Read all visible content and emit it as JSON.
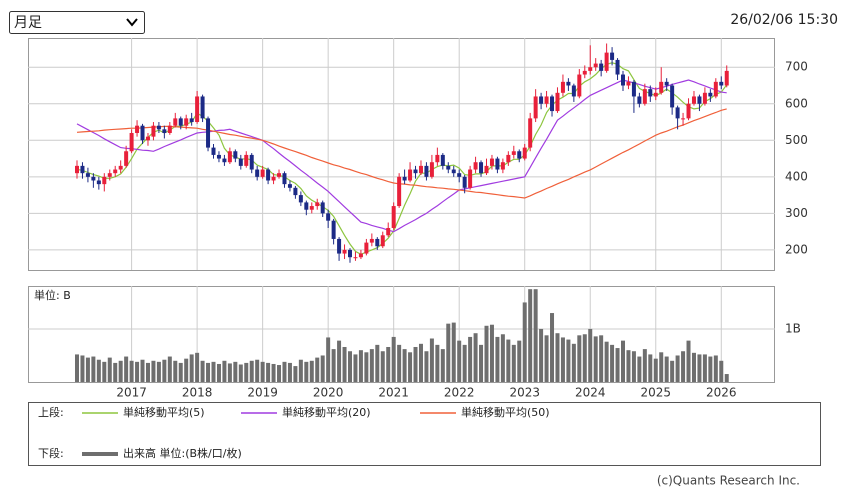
{
  "header": {
    "period_select": "月足",
    "timestamp": "26/02/06 15:30"
  },
  "chart_data": {
    "type": "candlestick",
    "categories": [
      null,
      null,
      null,
      null,
      null,
      null,
      null,
      null,
      null,
      null,
      "2017",
      null,
      null,
      null,
      null,
      null,
      null,
      null,
      null,
      null,
      null,
      null,
      "2018",
      null,
      null,
      null,
      null,
      null,
      null,
      null,
      null,
      null,
      null,
      null,
      "2019",
      null,
      null,
      null,
      null,
      null,
      null,
      null,
      null,
      null,
      null,
      null,
      "2020",
      null,
      null,
      null,
      null,
      null,
      null,
      null,
      null,
      null,
      null,
      null,
      "2021",
      null,
      null,
      null,
      null,
      null,
      null,
      null,
      null,
      null,
      null,
      null,
      "2022",
      null,
      null,
      null,
      null,
      null,
      null,
      null,
      null,
      null,
      null,
      null,
      "2023",
      null,
      null,
      null,
      null,
      null,
      null,
      null,
      null,
      null,
      null,
      null,
      "2024",
      null,
      null,
      null,
      null,
      null,
      null,
      null,
      null,
      null,
      null,
      null,
      "2025",
      null,
      null,
      null,
      null,
      null,
      null,
      null,
      null,
      null,
      null,
      null,
      "2026",
      null
    ],
    "ohlc": [
      [
        410,
        445,
        395,
        430
      ],
      [
        430,
        440,
        395,
        410
      ],
      [
        410,
        425,
        385,
        400
      ],
      [
        400,
        410,
        370,
        390
      ],
      [
        390,
        400,
        365,
        380
      ],
      [
        380,
        410,
        360,
        400
      ],
      [
        400,
        420,
        390,
        410
      ],
      [
        410,
        430,
        400,
        420
      ],
      [
        420,
        445,
        410,
        430
      ],
      [
        430,
        485,
        425,
        470
      ],
      [
        470,
        530,
        465,
        520
      ],
      [
        520,
        555,
        510,
        540
      ],
      [
        540,
        545,
        490,
        500
      ],
      [
        500,
        520,
        485,
        510
      ],
      [
        510,
        550,
        500,
        540
      ],
      [
        540,
        550,
        520,
        530
      ],
      [
        530,
        540,
        505,
        520
      ],
      [
        520,
        550,
        515,
        540
      ],
      [
        540,
        575,
        535,
        560
      ],
      [
        560,
        565,
        530,
        540
      ],
      [
        540,
        570,
        530,
        560
      ],
      [
        560,
        575,
        540,
        550
      ],
      [
        550,
        635,
        545,
        620
      ],
      [
        620,
        625,
        550,
        560
      ],
      [
        560,
        565,
        470,
        480
      ],
      [
        480,
        490,
        450,
        460
      ],
      [
        460,
        470,
        440,
        450
      ],
      [
        450,
        460,
        430,
        440
      ],
      [
        440,
        480,
        435,
        470
      ],
      [
        470,
        475,
        440,
        450
      ],
      [
        450,
        460,
        420,
        430
      ],
      [
        430,
        470,
        425,
        460
      ],
      [
        460,
        465,
        410,
        420
      ],
      [
        420,
        430,
        390,
        400
      ],
      [
        400,
        430,
        395,
        420
      ],
      [
        420,
        425,
        380,
        390
      ],
      [
        390,
        410,
        380,
        400
      ],
      [
        400,
        420,
        395,
        410
      ],
      [
        410,
        415,
        370,
        380
      ],
      [
        380,
        390,
        360,
        370
      ],
      [
        370,
        375,
        340,
        350
      ],
      [
        350,
        360,
        320,
        330
      ],
      [
        330,
        335,
        295,
        310
      ],
      [
        310,
        330,
        300,
        320
      ],
      [
        320,
        340,
        310,
        330
      ],
      [
        330,
        335,
        290,
        300
      ],
      [
        300,
        310,
        260,
        280
      ],
      [
        280,
        285,
        215,
        230
      ],
      [
        230,
        235,
        170,
        190
      ],
      [
        190,
        215,
        175,
        200
      ],
      [
        200,
        205,
        165,
        180
      ],
      [
        180,
        195,
        170,
        180
      ],
      [
        180,
        200,
        175,
        190
      ],
      [
        190,
        230,
        185,
        220
      ],
      [
        220,
        245,
        210,
        230
      ],
      [
        230,
        235,
        200,
        210
      ],
      [
        210,
        250,
        205,
        240
      ],
      [
        240,
        275,
        235,
        260
      ],
      [
        260,
        330,
        255,
        320
      ],
      [
        320,
        410,
        315,
        400
      ],
      [
        400,
        420,
        380,
        390
      ],
      [
        390,
        440,
        385,
        420
      ],
      [
        420,
        430,
        395,
        410
      ],
      [
        410,
        445,
        405,
        430
      ],
      [
        430,
        440,
        390,
        400
      ],
      [
        400,
        460,
        395,
        440
      ],
      [
        440,
        480,
        430,
        460
      ],
      [
        460,
        465,
        420,
        430
      ],
      [
        430,
        440,
        410,
        420
      ],
      [
        420,
        430,
        400,
        410
      ],
      [
        410,
        420,
        385,
        400
      ],
      [
        400,
        405,
        355,
        370
      ],
      [
        370,
        430,
        365,
        420
      ],
      [
        420,
        455,
        410,
        440
      ],
      [
        440,
        445,
        400,
        410
      ],
      [
        410,
        450,
        405,
        430
      ],
      [
        430,
        460,
        420,
        450
      ],
      [
        450,
        455,
        410,
        420
      ],
      [
        420,
        450,
        410,
        440
      ],
      [
        440,
        470,
        430,
        460
      ],
      [
        460,
        485,
        450,
        470
      ],
      [
        470,
        475,
        440,
        450
      ],
      [
        450,
        490,
        445,
        480
      ],
      [
        480,
        575,
        470,
        560
      ],
      [
        560,
        640,
        550,
        620
      ],
      [
        620,
        630,
        585,
        600
      ],
      [
        600,
        635,
        590,
        620
      ],
      [
        620,
        625,
        565,
        580
      ],
      [
        580,
        645,
        575,
        630
      ],
      [
        630,
        680,
        620,
        660
      ],
      [
        660,
        670,
        635,
        650
      ],
      [
        650,
        655,
        605,
        620
      ],
      [
        620,
        695,
        615,
        680
      ],
      [
        680,
        705,
        670,
        690
      ],
      [
        690,
        760,
        680,
        700
      ],
      [
        700,
        725,
        690,
        710
      ],
      [
        710,
        720,
        675,
        690
      ],
      [
        690,
        765,
        685,
        740
      ],
      [
        740,
        755,
        705,
        720
      ],
      [
        720,
        725,
        665,
        680
      ],
      [
        680,
        690,
        635,
        650
      ],
      [
        650,
        675,
        640,
        660
      ],
      [
        660,
        665,
        575,
        620
      ],
      [
        620,
        630,
        590,
        600
      ],
      [
        600,
        655,
        595,
        640
      ],
      [
        640,
        650,
        605,
        620
      ],
      [
        620,
        645,
        610,
        630
      ],
      [
        630,
        700,
        625,
        660
      ],
      [
        660,
        670,
        635,
        650
      ],
      [
        650,
        655,
        570,
        590
      ],
      [
        590,
        595,
        530,
        560
      ],
      [
        560,
        575,
        540,
        560
      ],
      [
        560,
        615,
        555,
        600
      ],
      [
        600,
        635,
        595,
        620
      ],
      [
        620,
        625,
        580,
        600
      ],
      [
        600,
        645,
        595,
        630
      ],
      [
        630,
        640,
        605,
        620
      ],
      [
        620,
        670,
        615,
        660
      ],
      [
        660,
        675,
        640,
        650
      ],
      [
        650,
        705,
        645,
        690
      ]
    ],
    "up_color": "#e8203a",
    "down_color": "#1c2a86",
    "ylim": [
      145,
      780
    ],
    "yticks": [
      200,
      300,
      400,
      500,
      600,
      700
    ],
    "grid": true,
    "upper_label": "上段:",
    "series": [
      {
        "name": "単純移動平均(5)",
        "color": "#8dc63f",
        "values": [
          420,
          418,
          412,
          406,
          402,
          396,
          396,
          400,
          408,
          426,
          450,
          476,
          492,
          508,
          522,
          528,
          520,
          528,
          538,
          538,
          544,
          550,
          574,
          566,
          552,
          534,
          514,
          478,
          460,
          454,
          448,
          450,
          446,
          432,
          426,
          420,
          406,
          404,
          400,
          390,
          382,
          368,
          348,
          336,
          328,
          318,
          308,
          292,
          266,
          240,
          216,
          196,
          188,
          194,
          200,
          206,
          218,
          232,
          252,
          286,
          322,
          354,
          388,
          410,
          410,
          420,
          428,
          432,
          430,
          432,
          424,
          406,
          404,
          408,
          408,
          414,
          430,
          430,
          430,
          440,
          448,
          448,
          460,
          484,
          516,
          542,
          576,
          596,
          610,
          618,
          628,
          628,
          648,
          660,
          668,
          680,
          696,
          708,
          712,
          708,
          696,
          690,
          666,
          642,
          634,
          628,
          622,
          630,
          640,
          630,
          618,
          604,
          592,
          586,
          588,
          606,
          614,
          626,
          632,
          652
        ]
      },
      {
        "name": "単純移動平均(20)",
        "color": "#a13ce0",
        "values": [
          545,
          537,
          529,
          521,
          513,
          504,
          496,
          488,
          480,
          478,
          477,
          475,
          473,
          472,
          470,
          476,
          483,
          489,
          495,
          501,
          508,
          514,
          520,
          522,
          523,
          525,
          527,
          528,
          530,
          525,
          520,
          515,
          510,
          505,
          500,
          488,
          477,
          465,
          453,
          442,
          430,
          418,
          407,
          395,
          383,
          372,
          360,
          346,
          332,
          318,
          304,
          290,
          276,
          272,
          267,
          263,
          259,
          254,
          250,
          258,
          267,
          275,
          283,
          292,
          300,
          311,
          321,
          332,
          343,
          353,
          364,
          367,
          370,
          373,
          376,
          379,
          382,
          385,
          388,
          391,
          394,
          397,
          400,
          426,
          452,
          478,
          503,
          529,
          555,
          566,
          578,
          589,
          600,
          612,
          623,
          630,
          637,
          644,
          651,
          658,
          665,
          661,
          657,
          653,
          648,
          644,
          640,
          644,
          648,
          653,
          657,
          661,
          665,
          660,
          654,
          649,
          643,
          638,
          632,
          630
        ]
      },
      {
        "name": "単純移動平均(50)",
        "color": "#f0603a",
        "values": [
          522,
          523,
          524,
          525,
          526,
          528,
          529,
          530,
          531,
          532,
          533,
          533,
          534,
          535,
          536,
          537,
          538,
          538,
          537,
          536,
          535,
          534,
          533,
          530,
          528,
          525,
          522,
          519,
          516,
          514,
          511,
          508,
          506,
          503,
          500,
          495,
          490,
          484,
          479,
          474,
          469,
          464,
          459,
          453,
          448,
          443,
          438,
          433,
          429,
          424,
          420,
          415,
          410,
          406,
          401,
          396,
          392,
          387,
          383,
          381,
          380,
          378,
          377,
          375,
          373,
          372,
          370,
          369,
          367,
          366,
          364,
          362,
          360,
          358,
          357,
          355,
          353,
          351,
          349,
          347,
          346,
          344,
          342,
          348,
          355,
          361,
          368,
          374,
          381,
          387,
          393,
          400,
          406,
          413,
          419,
          427,
          435,
          443,
          451,
          459,
          467,
          474,
          482,
          490,
          498,
          506,
          514,
          520,
          525,
          531,
          537,
          542,
          548,
          554,
          559,
          565,
          571,
          576,
          582,
          586
        ]
      }
    ],
    "volume": {
      "type": "bar",
      "lower_label": "下段:",
      "unit_label": "単位: B",
      "name": "出来高 単位:(B株/口/枚)",
      "color": "#6e6e6e",
      "ylim": [
        0,
        1.81
      ],
      "yticks": [
        {
          "value": 1,
          "label": "1B"
        }
      ],
      "values": [
        0.52,
        0.5,
        0.46,
        0.48,
        0.42,
        0.38,
        0.46,
        0.36,
        0.4,
        0.48,
        0.4,
        0.38,
        0.42,
        0.36,
        0.4,
        0.38,
        0.42,
        0.48,
        0.4,
        0.36,
        0.44,
        0.52,
        0.55,
        0.4,
        0.36,
        0.38,
        0.34,
        0.4,
        0.35,
        0.38,
        0.33,
        0.36,
        0.4,
        0.42,
        0.38,
        0.36,
        0.34,
        0.32,
        0.38,
        0.36,
        0.3,
        0.42,
        0.38,
        0.4,
        0.46,
        0.5,
        0.84,
        0.62,
        0.78,
        0.66,
        0.58,
        0.52,
        0.6,
        0.56,
        0.62,
        0.7,
        0.58,
        0.66,
        0.85,
        0.7,
        0.62,
        0.56,
        0.66,
        0.72,
        0.58,
        0.82,
        0.7,
        0.62,
        1.1,
        1.12,
        0.78,
        0.7,
        0.85,
        0.92,
        0.7,
        1.06,
        1.08,
        0.85,
        0.9,
        0.8,
        0.7,
        0.78,
        1.5,
        1.75,
        1.75,
        1.0,
        0.88,
        1.3,
        0.92,
        0.84,
        0.8,
        0.72,
        0.88,
        0.9,
        1.0,
        0.86,
        0.88,
        0.76,
        0.7,
        0.64,
        0.78,
        0.6,
        0.58,
        0.48,
        0.62,
        0.52,
        0.44,
        0.56,
        0.48,
        0.4,
        0.5,
        0.58,
        0.78,
        0.55,
        0.52,
        0.52,
        0.48,
        0.5,
        0.4,
        0.15
      ]
    }
  },
  "footer": {
    "copyright": "(c)Quants Research Inc."
  }
}
